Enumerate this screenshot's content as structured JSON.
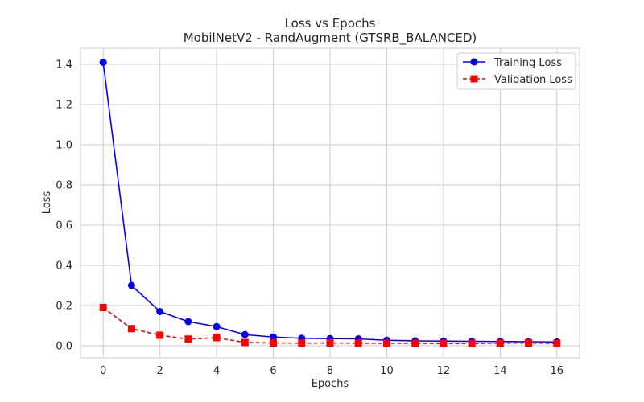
{
  "chart_data": {
    "type": "line",
    "title": "Loss vs Epochs",
    "subtitle": "MobilNetV2 - RandAugment (GTSRB_BALANCED)",
    "xlabel": "Epochs",
    "ylabel": "Loss",
    "x": [
      0,
      1,
      2,
      3,
      4,
      5,
      6,
      7,
      8,
      9,
      10,
      11,
      12,
      13,
      14,
      15,
      16
    ],
    "xlim": [
      -0.8,
      16.8
    ],
    "ylim": [
      -0.06,
      1.48
    ],
    "xticks": [
      0,
      2,
      4,
      6,
      8,
      10,
      12,
      14,
      16
    ],
    "yticks": [
      0.0,
      0.2,
      0.4,
      0.6,
      0.8,
      1.0,
      1.2,
      1.4
    ],
    "ytick_labels": [
      "0.0",
      "0.2",
      "0.4",
      "0.6",
      "0.8",
      "1.0",
      "1.2",
      "1.4"
    ],
    "grid": true,
    "legend_position": "top-right",
    "series": [
      {
        "name": "Training Loss",
        "color": "#0000ff",
        "marker": "circle",
        "line_style": "solid",
        "values": [
          1.41,
          0.3,
          0.17,
          0.12,
          0.095,
          0.055,
          0.043,
          0.037,
          0.035,
          0.034,
          0.027,
          0.024,
          0.023,
          0.022,
          0.021,
          0.02,
          0.019
        ]
      },
      {
        "name": "Validation Loss",
        "color": "#ff0000",
        "marker": "square",
        "line_style": "dashed",
        "values": [
          0.19,
          0.085,
          0.052,
          0.033,
          0.04,
          0.016,
          0.014,
          0.013,
          0.014,
          0.013,
          0.012,
          0.012,
          0.011,
          0.011,
          0.013,
          0.014,
          0.012
        ]
      }
    ]
  }
}
